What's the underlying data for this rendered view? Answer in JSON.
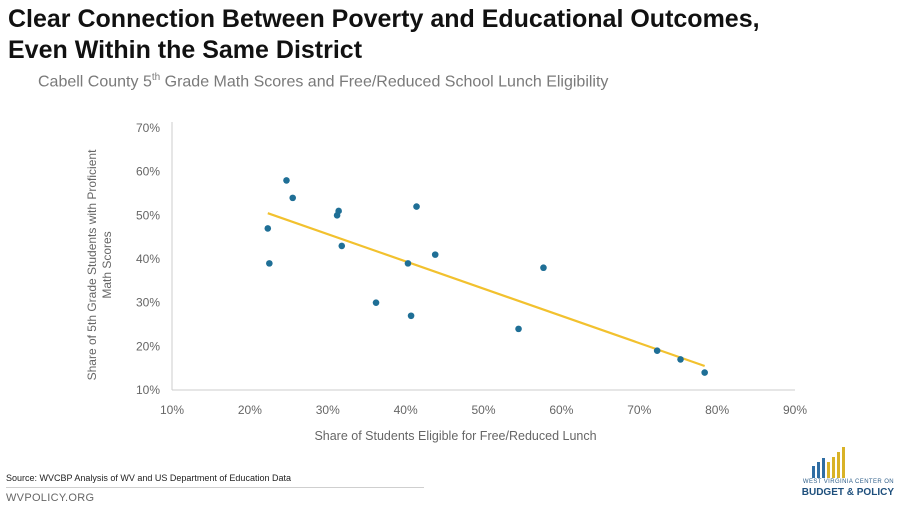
{
  "header": {
    "title_line1": "Clear Connection Between Poverty and Educational Outcomes,",
    "title_line2": "Even Within the Same District",
    "subtitle_part1": "Cabell County 5",
    "subtitle_sup": "th",
    "subtitle_part2": " Grade Math Scores and Free/Reduced School Lunch Eligibility"
  },
  "chart_data": {
    "type": "scatter",
    "xlabel": "Share of Students Eligible for Free/Reduced Lunch",
    "ylabel_line1": "Share of 5th Grade Students with Proficient",
    "ylabel_line2": "Math Scores",
    "xlim": [
      10,
      90
    ],
    "ylim": [
      10,
      70
    ],
    "x_ticks": [
      "10%",
      "20%",
      "30%",
      "40%",
      "50%",
      "60%",
      "70%",
      "80%",
      "90%"
    ],
    "y_ticks": [
      "10%",
      "20%",
      "30%",
      "40%",
      "50%",
      "60%",
      "70%"
    ],
    "points": [
      {
        "x": 22.3,
        "y": 47
      },
      {
        "x": 22.5,
        "y": 39
      },
      {
        "x": 24.7,
        "y": 58
      },
      {
        "x": 25.5,
        "y": 54
      },
      {
        "x": 31.2,
        "y": 50
      },
      {
        "x": 31.4,
        "y": 51
      },
      {
        "x": 31.8,
        "y": 43
      },
      {
        "x": 36.2,
        "y": 30
      },
      {
        "x": 40.3,
        "y": 39
      },
      {
        "x": 40.7,
        "y": 27
      },
      {
        "x": 41.4,
        "y": 52
      },
      {
        "x": 43.8,
        "y": 41
      },
      {
        "x": 54.5,
        "y": 24
      },
      {
        "x": 57.7,
        "y": 38
      },
      {
        "x": 72.3,
        "y": 19
      },
      {
        "x": 75.3,
        "y": 17
      },
      {
        "x": 78.4,
        "y": 14
      }
    ],
    "trendline": {
      "x": [
        22.3,
        78.4
      ],
      "y": [
        50.5,
        15.5
      ]
    },
    "grid": false,
    "colors": {
      "points": "#1f6f96",
      "trendline": "#f2c12e",
      "axis": "#cccccc",
      "text": "#666666"
    }
  },
  "footer": {
    "source": "Source: WVCBP Analysis of WV and US Department of Education Data",
    "site": "WVPOLICY.ORG",
    "logo_line1": "WEST VIRGINIA CENTER ON",
    "logo_line2": "BUDGET & POLICY"
  }
}
